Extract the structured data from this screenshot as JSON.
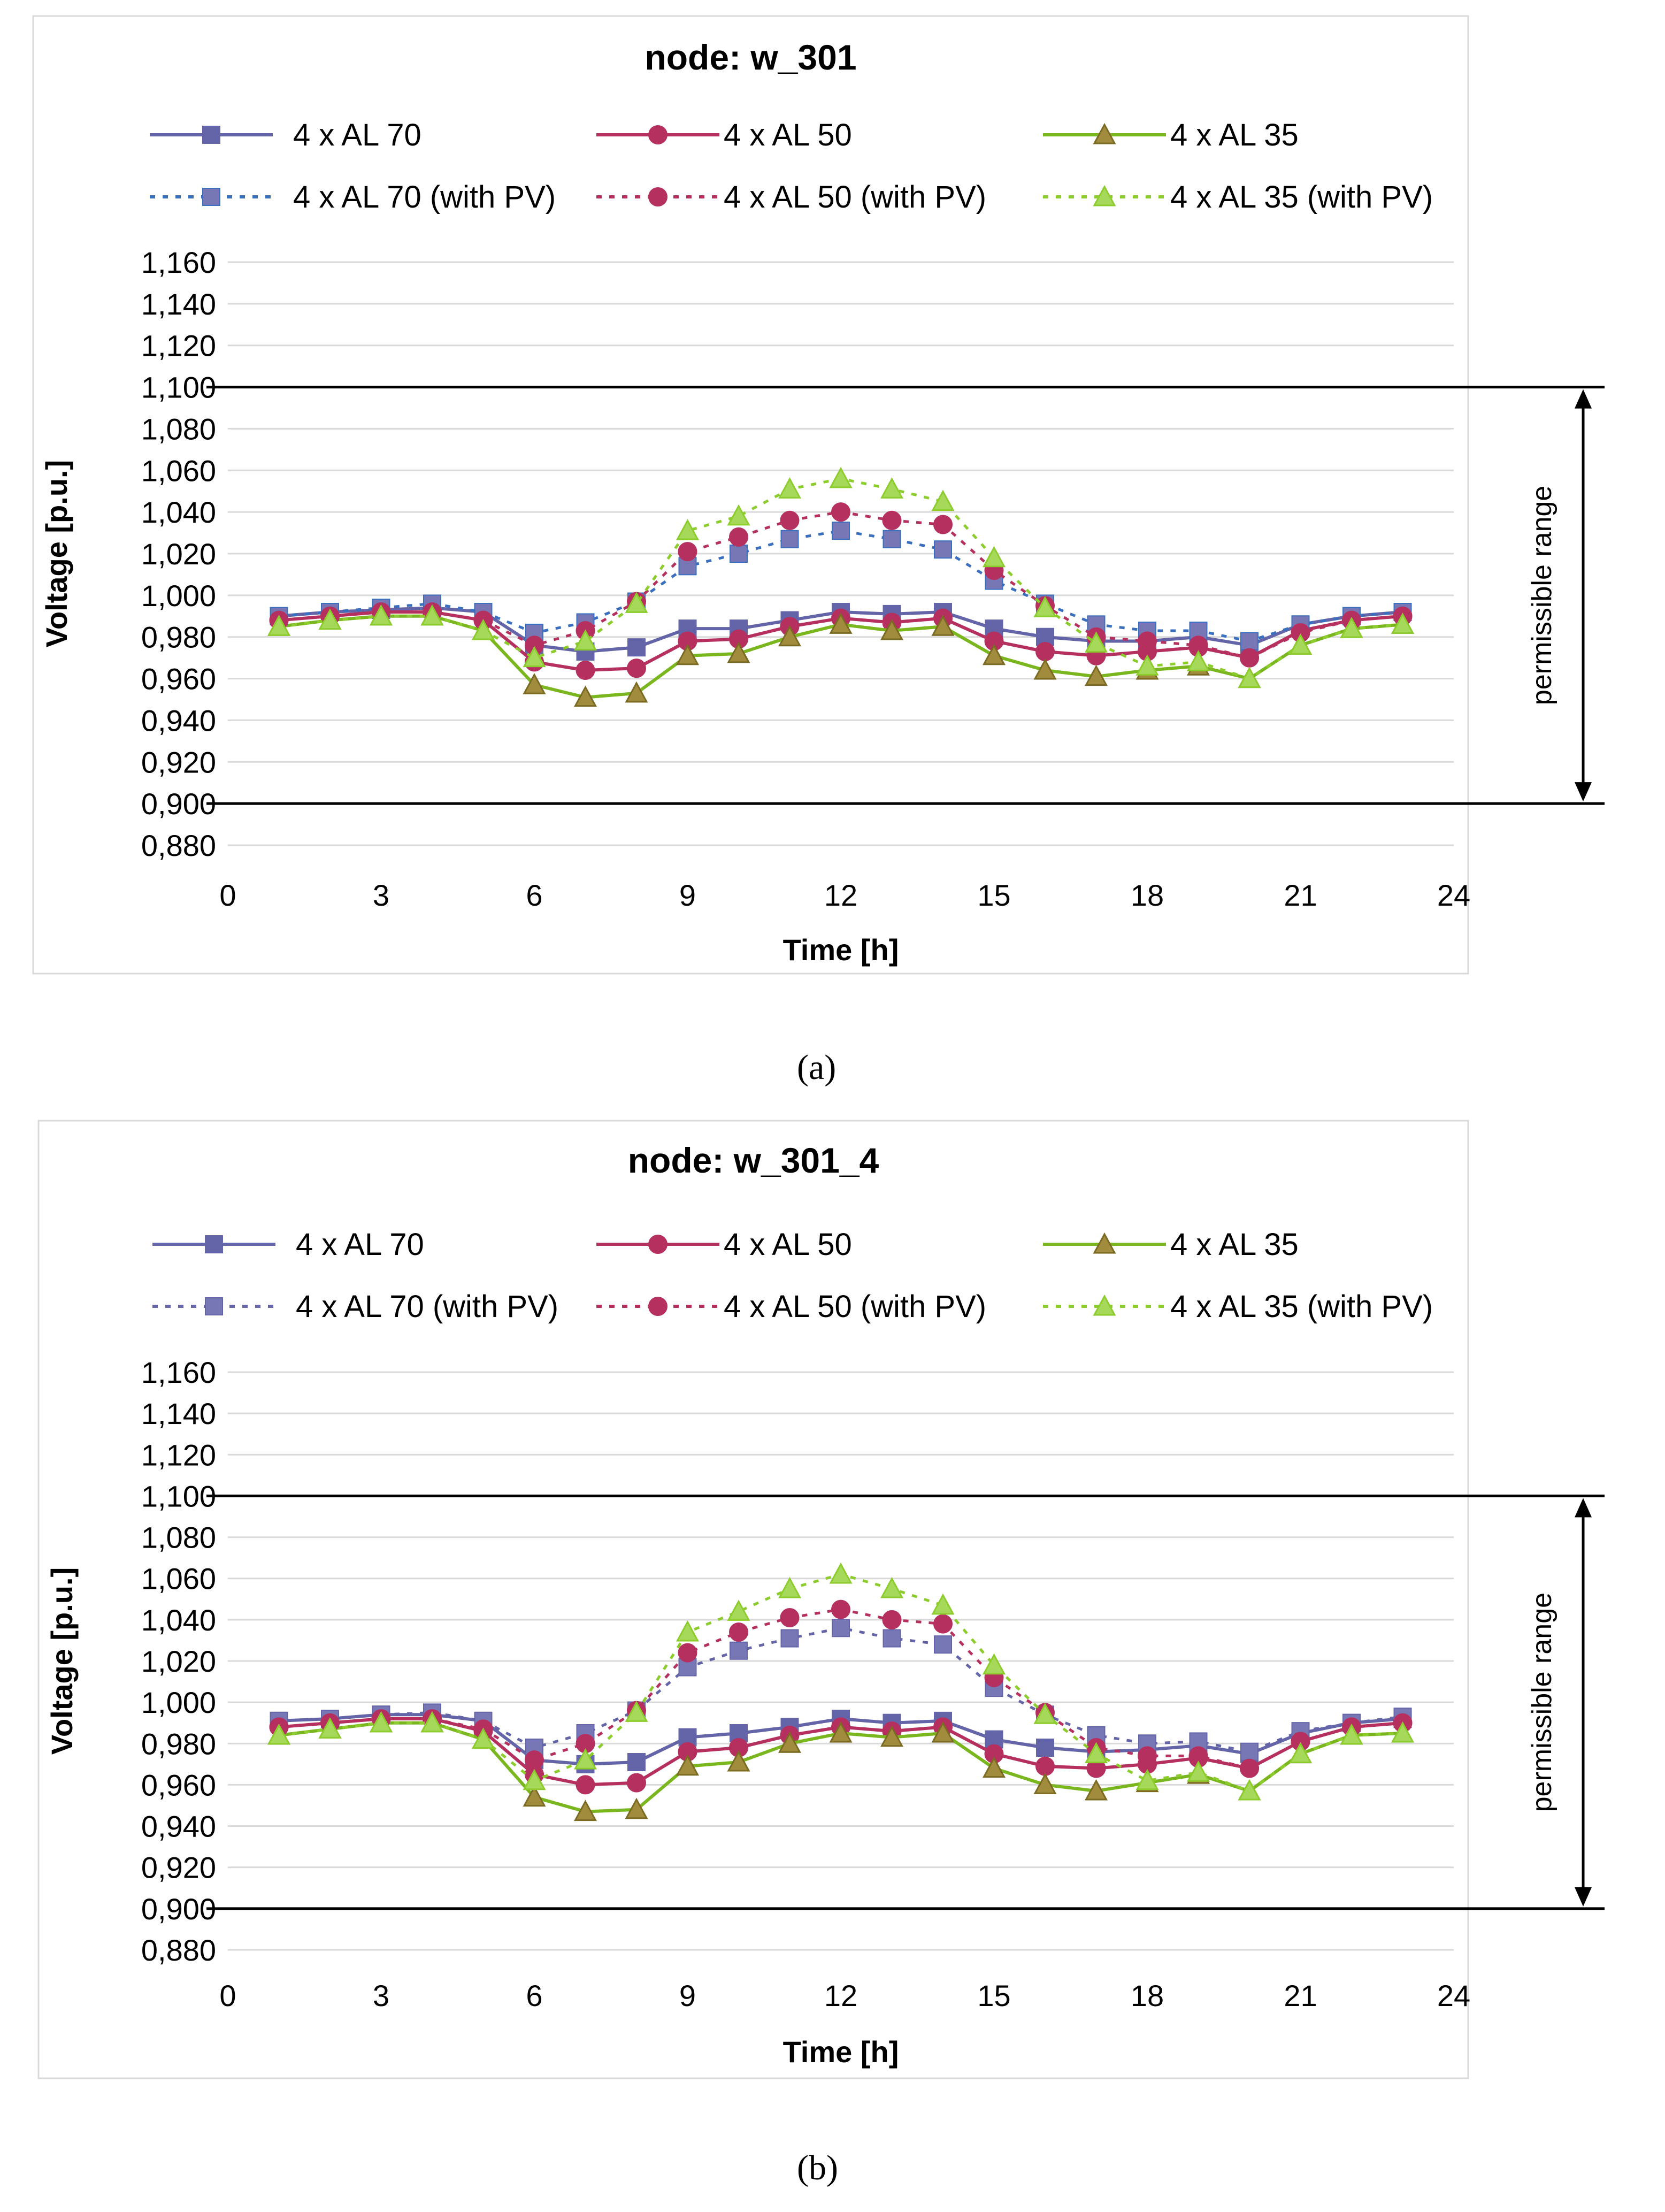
{
  "panel_labels": [
    "(a)",
    "(b)"
  ],
  "permissible_range_label": "permissible range",
  "chart_data": [
    {
      "type": "line",
      "title": "node: w_301",
      "xlabel": "Time [h]",
      "ylabel": "Voltage [p.u.]",
      "xlim": [
        0,
        24
      ],
      "ylim": [
        0.88,
        1.16
      ],
      "x_ticks": [
        0,
        3,
        6,
        9,
        12,
        15,
        18,
        21,
        24
      ],
      "y_ticks": [
        "0,880",
        "0,900",
        "0,920",
        "0,940",
        "0,960",
        "0,980",
        "1,000",
        "1,020",
        "1,040",
        "1,060",
        "1,080",
        "1,100",
        "1,120",
        "1,140",
        "1,160"
      ],
      "grid": true,
      "limits": [
        0.9,
        1.1
      ],
      "x": [
        1,
        2,
        3,
        4,
        5,
        6,
        7,
        8,
        9,
        10,
        11,
        12,
        13,
        14,
        15,
        16,
        17,
        18,
        19,
        20,
        21,
        22,
        23
      ],
      "series": [
        {
          "name": "4 x AL 70",
          "color": "#6464a8",
          "marker": "square",
          "dashed": false,
          "values": [
            0.99,
            0.992,
            0.993,
            0.994,
            0.992,
            0.976,
            0.973,
            0.975,
            0.984,
            0.984,
            0.988,
            0.992,
            0.991,
            0.992,
            0.984,
            0.98,
            0.978,
            0.978,
            0.98,
            0.976,
            0.986,
            0.99,
            0.992
          ]
        },
        {
          "name": "4 x AL 50",
          "color": "#b5305f",
          "marker": "circle",
          "dashed": false,
          "values": [
            0.988,
            0.99,
            0.992,
            0.992,
            0.988,
            0.968,
            0.964,
            0.965,
            0.978,
            0.979,
            0.985,
            0.989,
            0.987,
            0.989,
            0.978,
            0.973,
            0.971,
            0.973,
            0.975,
            0.97,
            0.983,
            0.988,
            0.99
          ]
        },
        {
          "name": "4 x AL 35",
          "color": "#7ab61e",
          "marker": "triangle",
          "marker_fill": "#a08c3c",
          "dashed": false,
          "values": [
            0.985,
            0.988,
            0.99,
            0.99,
            0.983,
            0.957,
            0.951,
            0.953,
            0.971,
            0.972,
            0.98,
            0.986,
            0.983,
            0.985,
            0.971,
            0.964,
            0.961,
            0.964,
            0.966,
            0.96,
            0.976,
            0.984,
            0.986
          ]
        },
        {
          "name": "4 x AL 70 (with PV)",
          "color": "#3a6fc0",
          "marker": "square",
          "marker_fill": "#7777b5",
          "dashed": true,
          "values": [
            0.99,
            0.992,
            0.994,
            0.996,
            0.992,
            0.982,
            0.987,
            0.997,
            1.014,
            1.02,
            1.027,
            1.031,
            1.027,
            1.022,
            1.007,
            0.996,
            0.986,
            0.983,
            0.983,
            0.978,
            0.986,
            0.99,
            0.992
          ]
        },
        {
          "name": "4 x AL 50 (with PV)",
          "color": "#b5305f",
          "marker": "circle",
          "dashed": true,
          "values": [
            0.988,
            0.99,
            0.992,
            0.992,
            0.988,
            0.976,
            0.983,
            0.997,
            1.021,
            1.028,
            1.036,
            1.04,
            1.036,
            1.034,
            1.012,
            0.995,
            0.98,
            0.978,
            0.976,
            0.97,
            0.982,
            0.988,
            0.99
          ]
        },
        {
          "name": "4 x AL 35 (with PV)",
          "color": "#8ccc2c",
          "marker": "triangle",
          "marker_fill": "#a6d95a",
          "dashed": true,
          "values": [
            0.985,
            0.988,
            0.99,
            0.99,
            0.983,
            0.97,
            0.978,
            0.996,
            1.031,
            1.038,
            1.051,
            1.056,
            1.051,
            1.045,
            1.018,
            0.994,
            0.977,
            0.966,
            0.968,
            0.96,
            0.976,
            0.984,
            0.986
          ]
        }
      ]
    },
    {
      "type": "line",
      "title": "node: w_301_4",
      "xlabel": "Time [h]",
      "ylabel": "Voltage [p.u.]",
      "xlim": [
        0,
        24
      ],
      "ylim": [
        0.88,
        1.16
      ],
      "x_ticks": [
        0,
        3,
        6,
        9,
        12,
        15,
        18,
        21,
        24
      ],
      "y_ticks": [
        "0,880",
        "0,900",
        "0,920",
        "0,940",
        "0,960",
        "0,980",
        "1,000",
        "1,020",
        "1,040",
        "1,060",
        "1,080",
        "1,100",
        "1,120",
        "1,140",
        "1,160"
      ],
      "grid": true,
      "limits": [
        0.9,
        1.1
      ],
      "x": [
        1,
        2,
        3,
        4,
        5,
        6,
        7,
        8,
        9,
        10,
        11,
        12,
        13,
        14,
        15,
        16,
        17,
        18,
        19,
        20,
        21,
        22,
        23
      ],
      "series": [
        {
          "name": "4 x AL 70",
          "color": "#6464a8",
          "marker": "square",
          "dashed": false,
          "values": [
            0.991,
            0.992,
            0.994,
            0.994,
            0.991,
            0.972,
            0.97,
            0.971,
            0.983,
            0.985,
            0.988,
            0.992,
            0.99,
            0.991,
            0.982,
            0.978,
            0.976,
            0.977,
            0.979,
            0.975,
            0.985,
            0.99,
            0.992
          ]
        },
        {
          "name": "4 x AL 50",
          "color": "#b5305f",
          "marker": "circle",
          "dashed": false,
          "values": [
            0.988,
            0.99,
            0.992,
            0.992,
            0.986,
            0.965,
            0.96,
            0.961,
            0.976,
            0.978,
            0.984,
            0.988,
            0.986,
            0.988,
            0.975,
            0.969,
            0.968,
            0.97,
            0.973,
            0.968,
            0.981,
            0.988,
            0.99
          ]
        },
        {
          "name": "4 x AL 35",
          "color": "#7ab61e",
          "marker": "triangle",
          "marker_fill": "#a08c3c",
          "dashed": false,
          "values": [
            0.984,
            0.987,
            0.99,
            0.99,
            0.982,
            0.954,
            0.947,
            0.948,
            0.969,
            0.971,
            0.98,
            0.985,
            0.983,
            0.985,
            0.968,
            0.96,
            0.957,
            0.961,
            0.965,
            0.957,
            0.975,
            0.984,
            0.985
          ]
        },
        {
          "name": "4 x AL 70 (with PV)",
          "color": "#6464a8",
          "marker": "square",
          "marker_fill": "#7777b5",
          "dashed": true,
          "values": [
            0.991,
            0.992,
            0.994,
            0.995,
            0.991,
            0.978,
            0.985,
            0.996,
            1.017,
            1.025,
            1.031,
            1.036,
            1.031,
            1.028,
            1.007,
            0.994,
            0.984,
            0.98,
            0.981,
            0.976,
            0.986,
            0.99,
            0.993
          ]
        },
        {
          "name": "4 x AL 50 (with PV)",
          "color": "#b5305f",
          "marker": "circle",
          "dashed": true,
          "values": [
            0.988,
            0.99,
            0.992,
            0.992,
            0.987,
            0.972,
            0.98,
            0.996,
            1.024,
            1.034,
            1.041,
            1.045,
            1.04,
            1.038,
            1.012,
            0.995,
            0.978,
            0.974,
            0.974,
            0.968,
            0.981,
            0.988,
            0.99
          ]
        },
        {
          "name": "4 x AL 35 (with PV)",
          "color": "#8ccc2c",
          "marker": "triangle",
          "marker_fill": "#a6d95a",
          "dashed": true,
          "values": [
            0.984,
            0.987,
            0.99,
            0.99,
            0.982,
            0.962,
            0.972,
            0.995,
            1.034,
            1.044,
            1.055,
            1.062,
            1.055,
            1.047,
            1.018,
            0.994,
            0.975,
            0.962,
            0.966,
            0.957,
            0.975,
            0.984,
            0.985
          ]
        }
      ]
    }
  ]
}
